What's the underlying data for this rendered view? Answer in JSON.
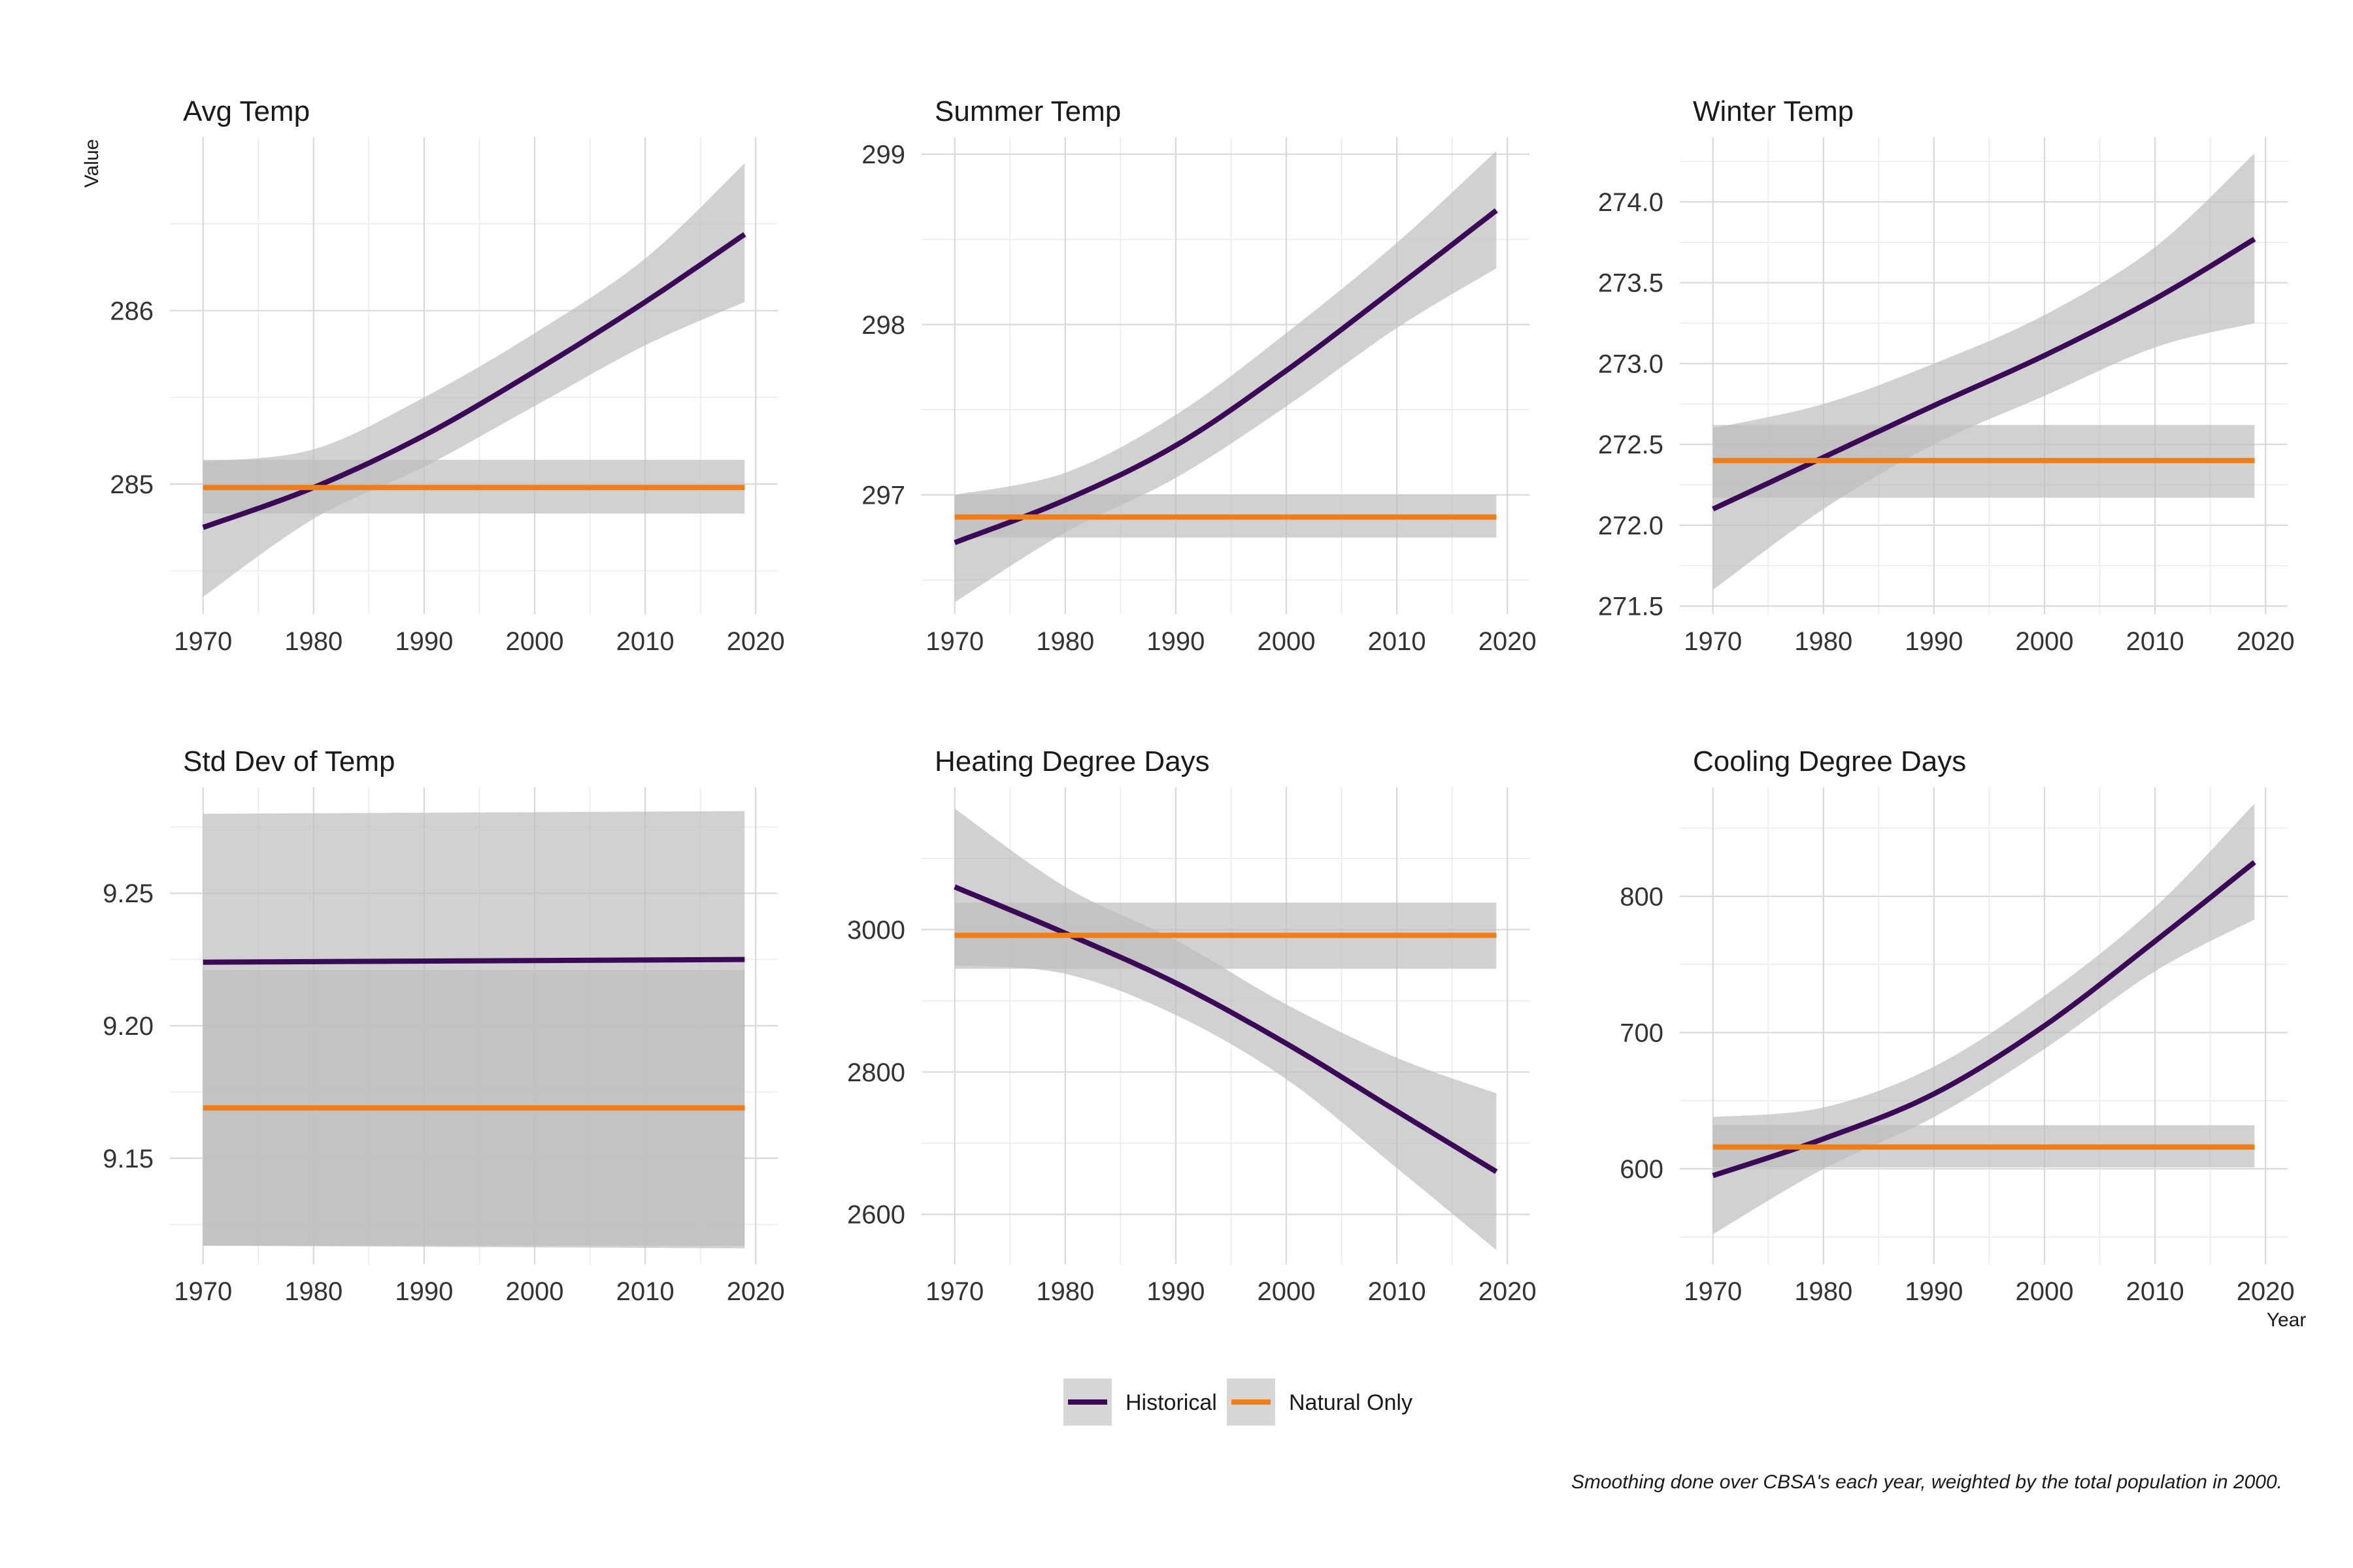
{
  "y_axis_title": "Value",
  "x_axis_title": "Year",
  "caption": "Smoothing done over CBSA's each year, weighted by the total population in 2000.",
  "colors": {
    "historical": "#3b0a57",
    "natural": "#f07d16",
    "band": "#bdbdbd"
  },
  "legend": {
    "items": [
      {
        "label": "Historical",
        "color": "#3b0a57"
      },
      {
        "label": "Natural Only",
        "color": "#f07d16"
      }
    ],
    "placement": "bottom-center"
  },
  "chart_data": [
    {
      "type": "line",
      "title": "Avg Temp",
      "xlim": [
        1967,
        2022
      ],
      "ylim": [
        284.25,
        287.0
      ],
      "x_ticks": [
        1970,
        1980,
        1990,
        2000,
        2010,
        2020
      ],
      "y_ticks": [
        285,
        286
      ],
      "y_tick_labels": [
        "285",
        "286"
      ],
      "grid": true,
      "series": [
        {
          "name": "Historical",
          "x": [
            1970,
            1980,
            1990,
            2000,
            2010,
            2019
          ],
          "y": [
            284.75,
            284.98,
            285.28,
            285.65,
            286.05,
            286.44
          ],
          "lower": [
            284.35,
            284.8,
            285.1,
            285.45,
            285.8,
            286.05
          ],
          "upper": [
            285.13,
            285.2,
            285.5,
            285.87,
            286.3,
            286.85
          ]
        },
        {
          "name": "Natural Only",
          "x": [
            1970,
            2019
          ],
          "y": [
            284.98,
            284.98
          ],
          "lower": [
            284.83,
            284.83
          ],
          "upper": [
            285.14,
            285.14
          ]
        }
      ]
    },
    {
      "type": "line",
      "title": "Summer Temp",
      "xlim": [
        1967,
        2022
      ],
      "ylim": [
        296.3,
        299.1
      ],
      "x_ticks": [
        1970,
        1980,
        1990,
        2000,
        2010,
        2020
      ],
      "y_ticks": [
        297,
        298,
        299
      ],
      "y_tick_labels": [
        "297",
        "298",
        "299"
      ],
      "grid": true,
      "series": [
        {
          "name": "Historical",
          "x": [
            1970,
            1980,
            1990,
            2000,
            2010,
            2019
          ],
          "y": [
            296.72,
            296.97,
            297.29,
            297.73,
            298.22,
            298.67
          ],
          "lower": [
            296.37,
            296.78,
            297.1,
            297.52,
            297.98,
            298.33
          ],
          "upper": [
            297.0,
            297.13,
            297.47,
            297.95,
            298.48,
            299.02
          ]
        },
        {
          "name": "Natural Only",
          "x": [
            1970,
            2019
          ],
          "y": [
            296.87,
            296.87
          ],
          "lower": [
            296.75,
            296.75
          ],
          "upper": [
            297.0,
            297.0
          ]
        }
      ]
    },
    {
      "type": "line",
      "title": "Winter Temp",
      "xlim": [
        1967,
        2022
      ],
      "ylim": [
        271.45,
        274.4
      ],
      "x_ticks": [
        1970,
        1980,
        1990,
        2000,
        2010,
        2020
      ],
      "y_ticks": [
        271.5,
        272.0,
        272.5,
        273.0,
        273.5,
        274.0
      ],
      "y_tick_labels": [
        "271.5",
        "272.0",
        "272.5",
        "273.0",
        "273.5",
        "274.0"
      ],
      "grid": true,
      "series": [
        {
          "name": "Historical",
          "x": [
            1970,
            1980,
            1990,
            2000,
            2010,
            2019
          ],
          "y": [
            272.1,
            272.42,
            272.74,
            273.05,
            273.4,
            273.77
          ],
          "lower": [
            271.6,
            272.1,
            272.5,
            272.8,
            273.1,
            273.25
          ],
          "upper": [
            272.6,
            272.75,
            273.0,
            273.3,
            273.72,
            274.3
          ]
        },
        {
          "name": "Natural Only",
          "x": [
            1970,
            2019
          ],
          "y": [
            272.4,
            272.4
          ],
          "lower": [
            272.17,
            272.17
          ],
          "upper": [
            272.62,
            272.62
          ]
        }
      ]
    },
    {
      "type": "line",
      "title": "Std Dev of Temp",
      "xlim": [
        1967,
        2022
      ],
      "ylim": [
        9.11,
        9.29
      ],
      "x_ticks": [
        1970,
        1980,
        1990,
        2000,
        2010,
        2020
      ],
      "y_ticks": [
        9.15,
        9.2,
        9.25
      ],
      "y_tick_labels": [
        "9.15",
        "9.20",
        "9.25"
      ],
      "grid": true,
      "series": [
        {
          "name": "Historical",
          "x": [
            1970,
            2019
          ],
          "y": [
            9.224,
            9.225
          ],
          "lower": [
            9.117,
            9.116
          ],
          "upper": [
            9.28,
            9.281
          ]
        },
        {
          "name": "Natural Only",
          "x": [
            1970,
            2019
          ],
          "y": [
            9.169,
            9.169
          ],
          "lower": [
            9.117,
            9.117
          ],
          "upper": [
            9.221,
            9.221
          ]
        }
      ]
    },
    {
      "type": "line",
      "title": "Heating Degree Days",
      "xlim": [
        1967,
        2022
      ],
      "ylim": [
        2530,
        3200
      ],
      "x_ticks": [
        1970,
        1980,
        1990,
        2000,
        2010,
        2020
      ],
      "y_ticks": [
        2600,
        2800,
        3000
      ],
      "y_tick_labels": [
        "2600",
        "2800",
        "3000"
      ],
      "grid": true,
      "series": [
        {
          "name": "Historical",
          "x": [
            1970,
            1980,
            1990,
            2000,
            2010,
            2019
          ],
          "y": [
            3060,
            2995,
            2925,
            2840,
            2745,
            2660
          ],
          "lower": [
            2950,
            2938,
            2880,
            2790,
            2665,
            2550
          ],
          "upper": [
            3170,
            3060,
            2985,
            2895,
            2820,
            2770
          ]
        },
        {
          "name": "Natural Only",
          "x": [
            1970,
            2019
          ],
          "y": [
            2992,
            2992
          ],
          "lower": [
            2945,
            2945
          ],
          "upper": [
            3038,
            3038
          ]
        }
      ]
    },
    {
      "type": "line",
      "title": "Cooling Degree Days",
      "xlim": [
        1967,
        2022
      ],
      "ylim": [
        530,
        880
      ],
      "x_ticks": [
        1970,
        1980,
        1990,
        2000,
        2010,
        2020
      ],
      "y_ticks": [
        600,
        700,
        800
      ],
      "y_tick_labels": [
        "600",
        "700",
        "800"
      ],
      "grid": true,
      "series": [
        {
          "name": "Historical",
          "x": [
            1970,
            1980,
            1990,
            2000,
            2010,
            2019
          ],
          "y": [
            595,
            622,
            655,
            705,
            767,
            825
          ],
          "lower": [
            552,
            600,
            638,
            688,
            745,
            783
          ],
          "upper": [
            638,
            645,
            675,
            727,
            792,
            868
          ]
        },
        {
          "name": "Natural Only",
          "x": [
            1970,
            2019
          ],
          "y": [
            616,
            616
          ],
          "lower": [
            601,
            601
          ],
          "upper": [
            632,
            632
          ]
        }
      ]
    }
  ]
}
